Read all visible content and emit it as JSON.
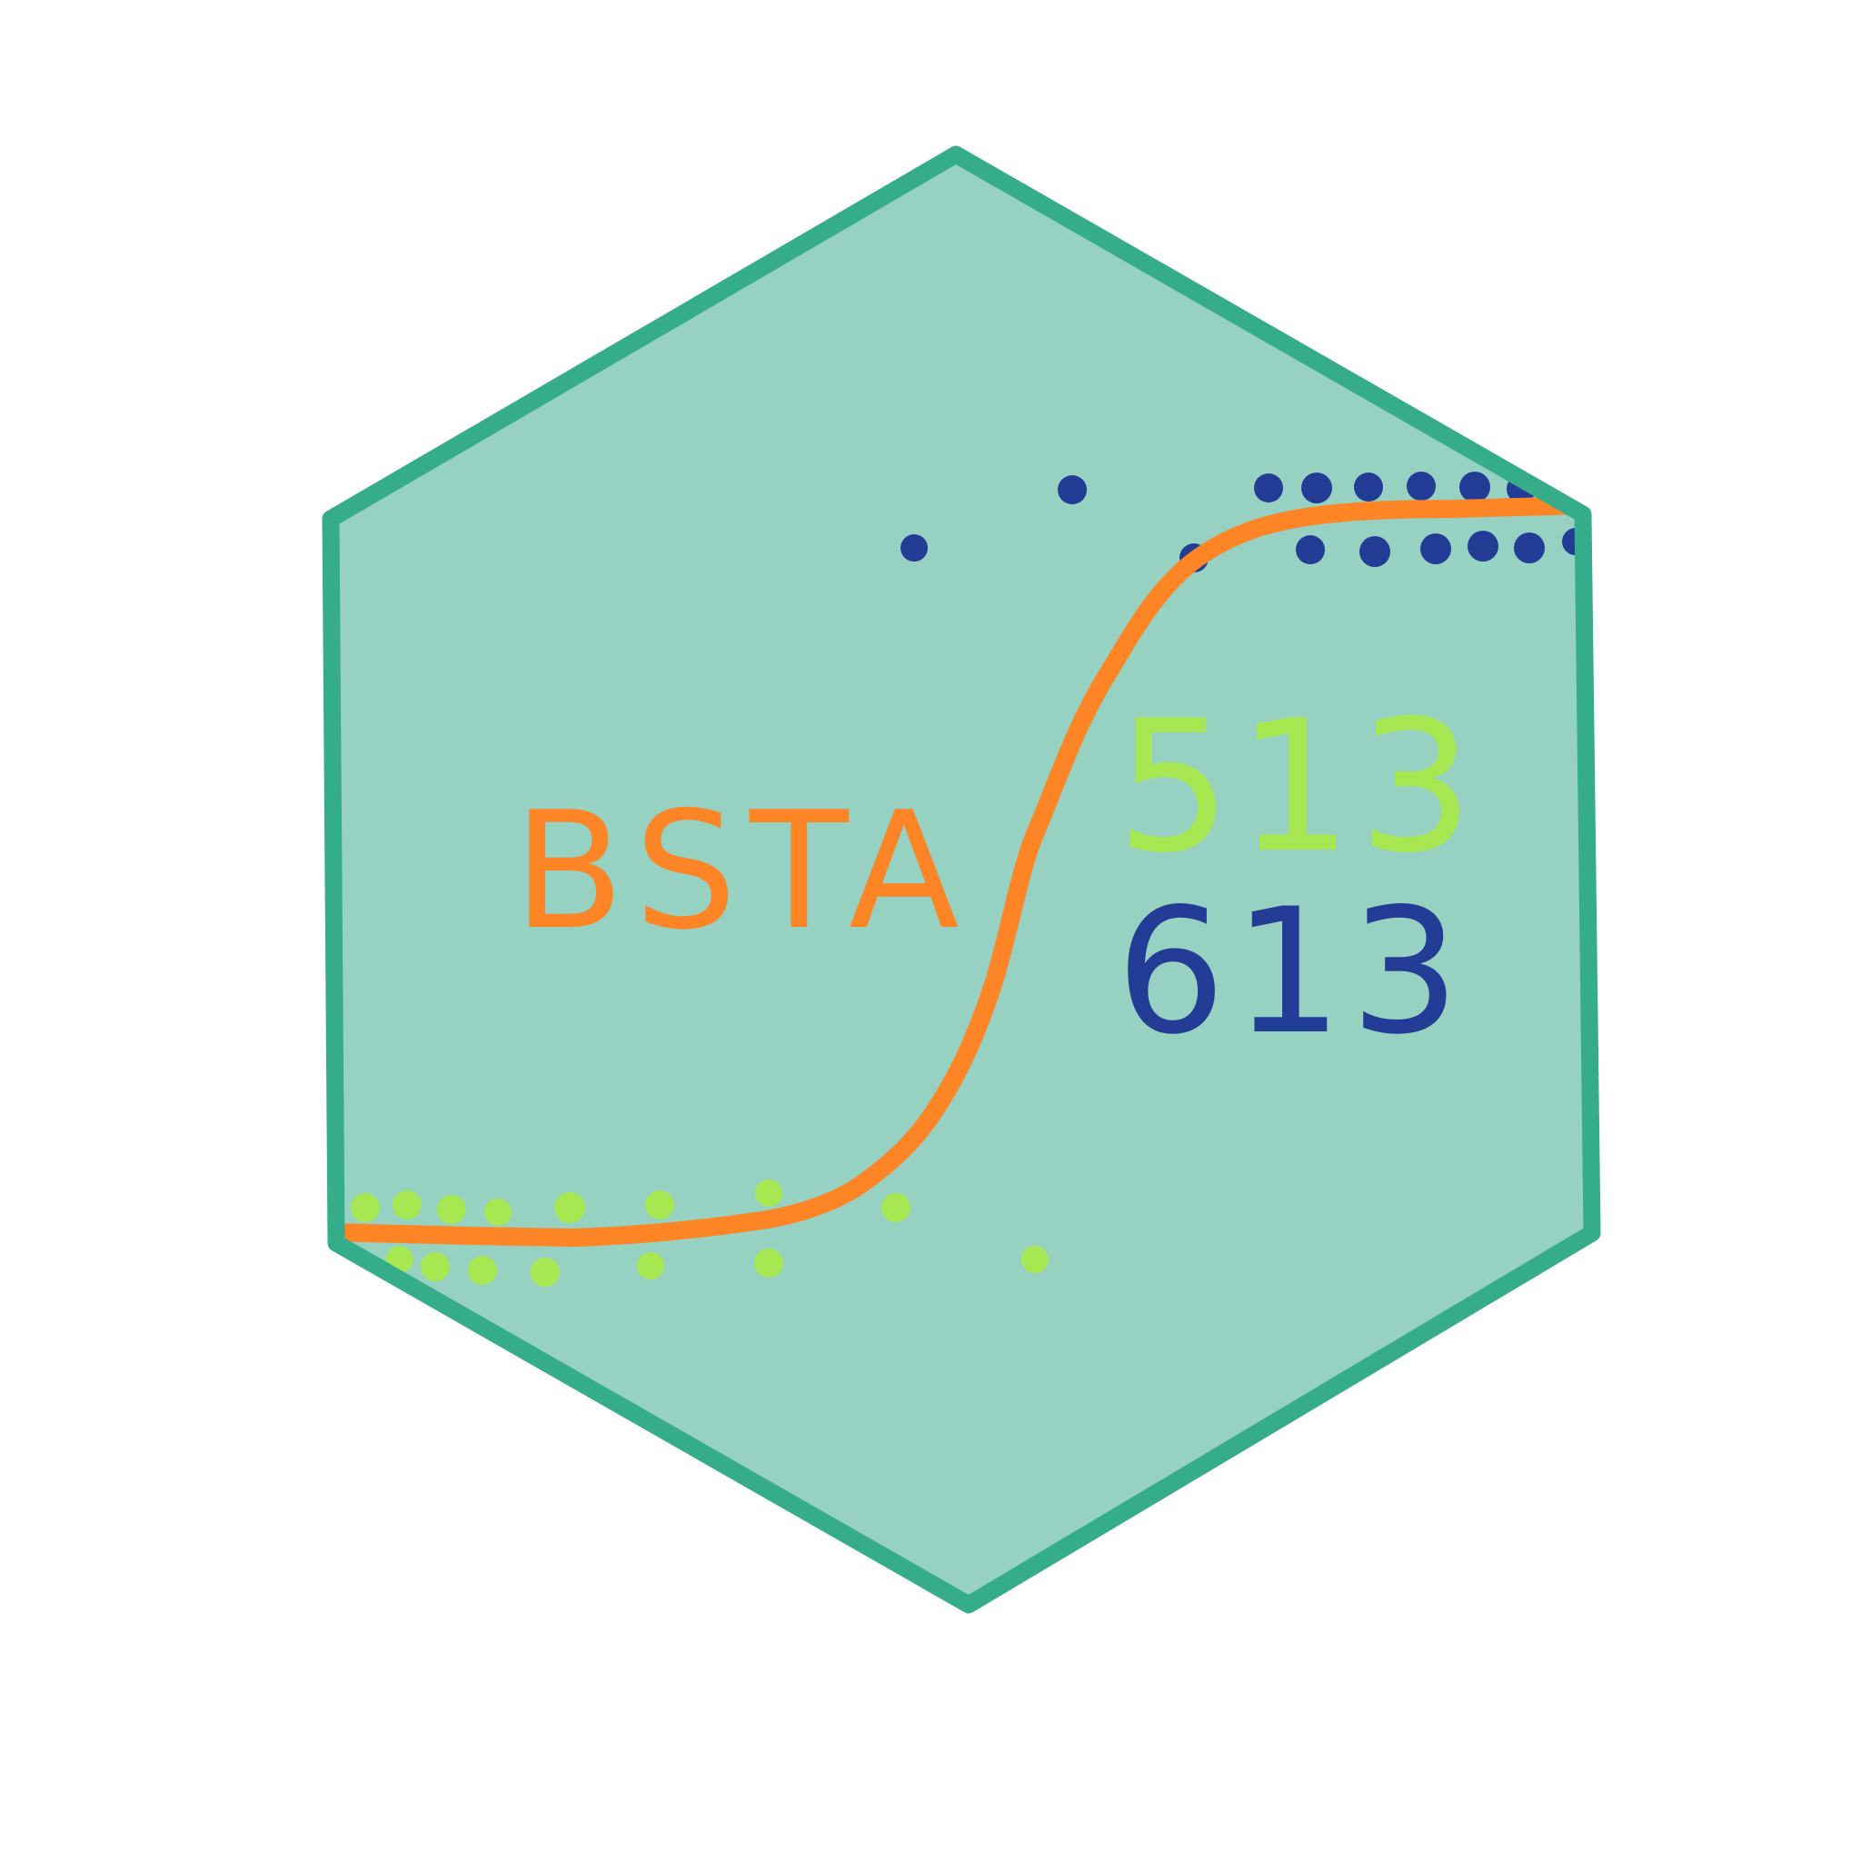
{
  "logo": {
    "title": "BSTA",
    "course_numbers": [
      "513",
      "613"
    ]
  },
  "colors": {
    "background": "#ffffff",
    "hex_fill": "#96d1c1",
    "hex_border": "#36ad8a",
    "curve": "#fd8526",
    "points_high": "#233d97",
    "points_low": "#a7e852",
    "title": "#fd8526",
    "number_top": "#a7e852",
    "number_bottom": "#233d97"
  },
  "icons": {
    "badge": "hexagon-icon",
    "plot": "logistic-curve-icon"
  }
}
